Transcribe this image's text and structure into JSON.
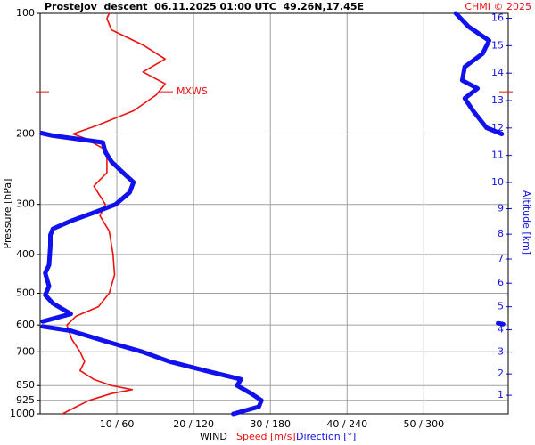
{
  "chart_data": {
    "type": "profile",
    "title": "Prostejov  descent  06.11.2025 01:00 UTC  49.26N,17.45E",
    "credit": "CHMI © 2025",
    "x_label": "WIND",
    "y_label": "Pressure [hPa]",
    "y2_label": "Altitude [km]",
    "ylim": [
      1000,
      100
    ],
    "y_log": true,
    "yticks": [
      100,
      200,
      300,
      400,
      500,
      600,
      700,
      850,
      925,
      1000
    ],
    "xlim": [
      0,
      61
    ],
    "x2lim": [
      0,
      366
    ],
    "xticks": [
      {
        "value": 10,
        "label": "10 / 60"
      },
      {
        "value": 20,
        "label": "20 / 120"
      },
      {
        "value": 30,
        "label": "30 / 180"
      },
      {
        "value": 40,
        "label": "40 / 240"
      },
      {
        "value": 50,
        "label": "50 / 300"
      }
    ],
    "y2lim": [
      0.11,
      16.2
    ],
    "y2ticks": [
      1,
      2,
      3,
      4,
      5,
      6,
      7,
      8,
      9,
      10,
      11,
      12,
      13,
      14,
      15,
      16
    ],
    "grid": true,
    "series": [
      {
        "name": "Speed [m/s]",
        "color": "#ee1111",
        "axis": "x",
        "pressure": [
          1000,
          960,
          925,
          890,
          870,
          850,
          820,
          780,
          740,
          700,
          650,
          600,
          570,
          540,
          500,
          450,
          400,
          350,
          320,
          300,
          270,
          250,
          220,
          205,
          200,
          190,
          175,
          160,
          150,
          140,
          130,
          120,
          110,
          103,
          100
        ],
        "values": [
          2.9,
          4.7,
          6.4,
          9.3,
          12,
          9.3,
          7,
          5.2,
          5.8,
          5.2,
          4.1,
          3.5,
          4.7,
          7.6,
          9,
          9.7,
          9.5,
          9,
          7.8,
          8.5,
          7,
          8.7,
          8.7,
          5.8,
          4.3,
          7.6,
          12.2,
          15.1,
          16.3,
          13.4,
          16.3,
          13.4,
          9.3,
          8.7,
          9
        ]
      },
      {
        "name": "Direction [°]",
        "color": "#1111ee",
        "axis": "x2",
        "pressure": [
          1000,
          960,
          925,
          890,
          850,
          820,
          780,
          740,
          700,
          660,
          620,
          605,
          null,
          597,
          594,
          null,
          588,
          563,
          530,
          505,
          480,
          445,
          425,
          380,
          358,
          345,
          330,
          312,
          300,
          280,
          264,
          252,
          235,
          222,
          210,
          202,
          199,
          null,
          200,
          193,
          176,
          163,
          154,
          147,
          136,
          126,
          117,
          108,
          100
        ],
        "values": [
          151,
          171,
          173,
          165,
          154,
          157,
          129,
          101,
          80,
          52,
          24,
          2,
          null,
          362,
          358,
          null,
          2,
          24,
          10,
          4,
          7,
          4,
          7,
          8,
          8,
          10,
          24,
          45,
          59,
          70,
          73,
          66,
          56,
          51,
          49,
          10,
          1,
          null,
          361,
          349,
          339,
          332,
          342,
          330,
          332,
          346,
          351,
          335,
          325
        ]
      }
    ],
    "annotation": {
      "text": "MXWS",
      "pressure": 157,
      "value": 16.5
    }
  }
}
